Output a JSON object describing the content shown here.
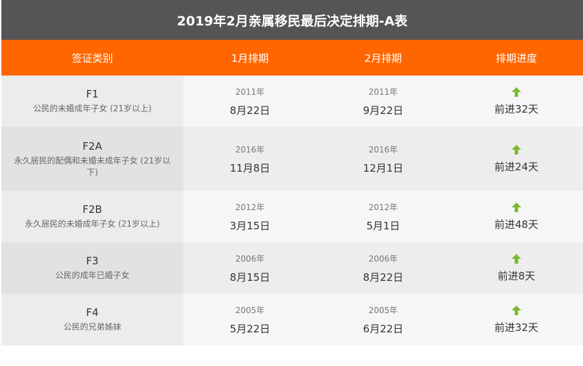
{
  "title": "2019年2月亲属移民最后决定排期-A表",
  "headers": {
    "category": "签证类别",
    "jan": "1月排期",
    "feb": "2月排期",
    "progress": "排期进度"
  },
  "rows": [
    {
      "code": "F1",
      "desc": "公民的未婚成年子女 (21岁以上)",
      "jan_year": "2011年",
      "jan_date": "8月22日",
      "feb_year": "2011年",
      "feb_date": "9月22日",
      "progress": "前进32天"
    },
    {
      "code": "F2A",
      "desc": "永久居民的配偶和未婚未成年子女 (21岁以下)",
      "jan_year": "2016年",
      "jan_date": "11月8日",
      "feb_year": "2016年",
      "feb_date": "12月1日",
      "progress": "前进24天"
    },
    {
      "code": "F2B",
      "desc": "永久居民的未婚成年子女 (21岁以上)",
      "jan_year": "2012年",
      "jan_date": "3月15日",
      "feb_year": "2012年",
      "feb_date": "5月1日",
      "progress": "前进48天"
    },
    {
      "code": "F3",
      "desc": "公民的成年已婚子女",
      "jan_year": "2006年",
      "jan_date": "8月15日",
      "feb_year": "2006年",
      "feb_date": "8月22日",
      "progress": "前进8天"
    },
    {
      "code": "F4",
      "desc": "公民的兄弟姊妹",
      "jan_year": "2005年",
      "jan_date": "5月22日",
      "feb_year": "2005年",
      "feb_date": "6月22日",
      "progress": "前进32天"
    }
  ],
  "icons": {
    "progress": "arrow-up-icon"
  },
  "colors": {
    "title_bg": "#555555",
    "header_bg": "#ff6600",
    "arrow": "#7cb82f"
  }
}
